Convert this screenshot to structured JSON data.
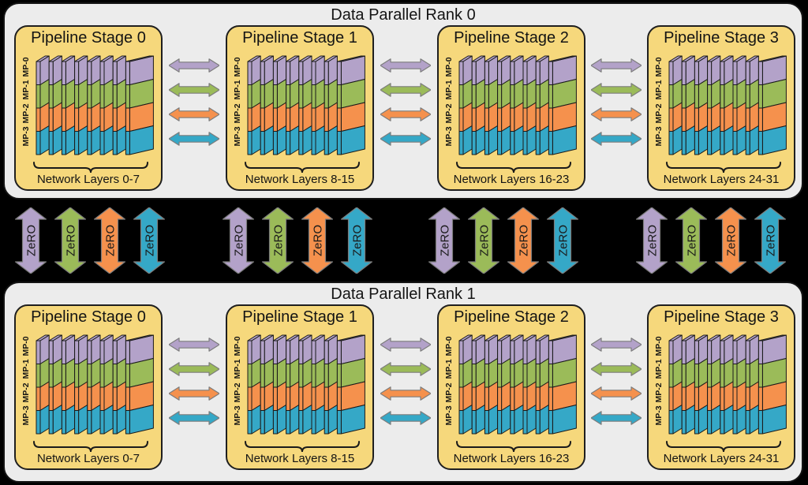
{
  "palette": {
    "page_bg": "#000000",
    "panel_bg": "#ECECEC",
    "stage_bg": "#F6D87C",
    "outline": "#1a1a1a",
    "arrow_outline": "#7d7d7d",
    "mp_colors": [
      "#B3A2C9",
      "#9BBB59",
      "#F5914D",
      "#35A8C7"
    ]
  },
  "mp_labels": [
    "MP-0",
    "MP-1",
    "MP-2",
    "MP-3"
  ],
  "zero": {
    "label": "ZeRO"
  },
  "ranks": [
    {
      "title": "Data Parallel Rank 0",
      "stages": [
        {
          "title": "Pipeline Stage 0",
          "layers_label": "Network Layers 0-7"
        },
        {
          "title": "Pipeline Stage 1",
          "layers_label": "Network Layers 8-15"
        },
        {
          "title": "Pipeline Stage 2",
          "layers_label": "Network Layers 16-23"
        },
        {
          "title": "Pipeline Stage 3",
          "layers_label": "Network Layers 24-31"
        }
      ]
    },
    {
      "title": "Data Parallel Rank 1",
      "stages": [
        {
          "title": "Pipeline Stage 0",
          "layers_label": "Network Layers 0-7"
        },
        {
          "title": "Pipeline Stage 1",
          "layers_label": "Network Layers 8-15"
        },
        {
          "title": "Pipeline Stage 2",
          "layers_label": "Network Layers 16-23"
        },
        {
          "title": "Pipeline Stage 3",
          "layers_label": "Network Layers 24-31"
        }
      ]
    }
  ]
}
